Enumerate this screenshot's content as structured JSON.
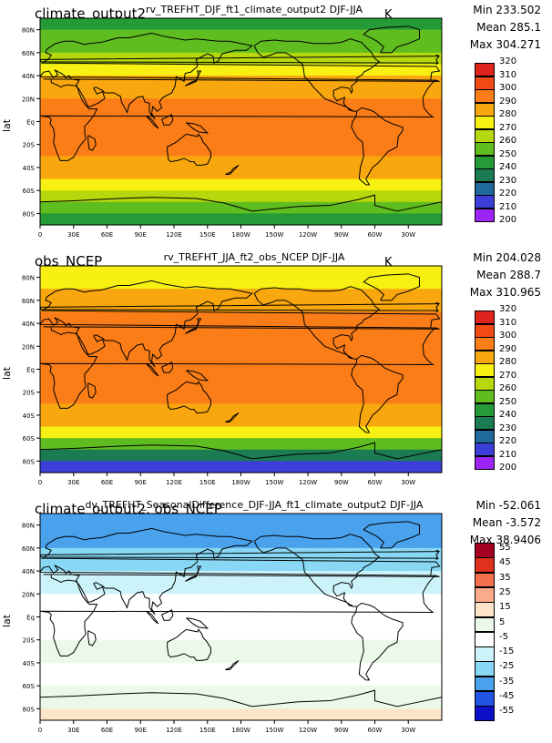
{
  "chart_data": [
    {
      "type": "heatmap",
      "left_title": "climate_output2",
      "center_title": "rv_TREFHT_DJF_ft1_climate_output2  DJF-JJA",
      "units": "K",
      "stats": [
        "Min 233.502",
        "Mean 285.1",
        "Max 304.271"
      ],
      "ylabel": "lat",
      "y_ticks": [
        "80N",
        "60N",
        "40N",
        "20N",
        "Eq",
        "20S",
        "40S",
        "60S",
        "80S"
      ],
      "x_ticks": [
        "0",
        "30E",
        "60E",
        "90E",
        "120E",
        "150E",
        "180W",
        "150W",
        "120W",
        "90W",
        "60W",
        "30W"
      ],
      "legend_levels": [
        "320",
        "310",
        "300",
        "290",
        "280",
        "270",
        "260",
        "250",
        "240",
        "230",
        "220",
        "210",
        "200"
      ],
      "legend_colors": [
        "#8b0000",
        "#e0231c",
        "#f24a14",
        "#fa7d18",
        "#f9a70e",
        "#f7f012",
        "#b7d80c",
        "#5fbd1f",
        "#249b36",
        "#1b7b52",
        "#1f6a9a",
        "#3b3fd7",
        "#9c24f7"
      ],
      "zonal_profile": [
        {
          "lat": 90,
          "value": 245
        },
        {
          "lat": 80,
          "value": 248
        },
        {
          "lat": 70,
          "value": 253
        },
        {
          "lat": 60,
          "value": 260
        },
        {
          "lat": 50,
          "value": 268
        },
        {
          "lat": 40,
          "value": 277
        },
        {
          "lat": 30,
          "value": 286
        },
        {
          "lat": 20,
          "value": 293
        },
        {
          "lat": 10,
          "value": 297
        },
        {
          "lat": 0,
          "value": 299
        },
        {
          "lat": -10,
          "value": 299
        },
        {
          "lat": -20,
          "value": 297
        },
        {
          "lat": -30,
          "value": 292
        },
        {
          "lat": -40,
          "value": 286
        },
        {
          "lat": -50,
          "value": 277
        },
        {
          "lat": -60,
          "value": 270
        },
        {
          "lat": -70,
          "value": 262
        },
        {
          "lat": -80,
          "value": 244
        },
        {
          "lat": -90,
          "value": 238
        }
      ]
    },
    {
      "type": "heatmap",
      "left_title": "obs_NCEP",
      "center_title": "rv_TREFHT_JJA_ft2_obs_NCEP  DJF-JJA",
      "units": "K",
      "stats": [
        "Min 204.028",
        "Mean 288.7",
        "Max 310.965"
      ],
      "ylabel": "lat",
      "y_ticks": [
        "80N",
        "60N",
        "40N",
        "20N",
        "Eq",
        "20S",
        "40S",
        "60S",
        "80S"
      ],
      "x_ticks": [
        "0",
        "30E",
        "60E",
        "90E",
        "120E",
        "150E",
        "180W",
        "150W",
        "120W",
        "90W",
        "60W",
        "30W"
      ],
      "legend_levels": [
        "320",
        "310",
        "300",
        "290",
        "280",
        "270",
        "260",
        "250",
        "240",
        "230",
        "220",
        "210",
        "200"
      ],
      "legend_colors": [
        "#8b0000",
        "#e0231c",
        "#f24a14",
        "#fa7d18",
        "#f9a70e",
        "#f7f012",
        "#b7d80c",
        "#5fbd1f",
        "#249b36",
        "#1b7b52",
        "#1f6a9a",
        "#3b3fd7",
        "#9c24f7"
      ],
      "zonal_profile": [
        {
          "lat": 90,
          "value": 273
        },
        {
          "lat": 80,
          "value": 276
        },
        {
          "lat": 70,
          "value": 280
        },
        {
          "lat": 60,
          "value": 286
        },
        {
          "lat": 50,
          "value": 290
        },
        {
          "lat": 40,
          "value": 294
        },
        {
          "lat": 30,
          "value": 297
        },
        {
          "lat": 20,
          "value": 299
        },
        {
          "lat": 10,
          "value": 299
        },
        {
          "lat": 0,
          "value": 298
        },
        {
          "lat": -10,
          "value": 296
        },
        {
          "lat": -20,
          "value": 293
        },
        {
          "lat": -30,
          "value": 289
        },
        {
          "lat": -40,
          "value": 283
        },
        {
          "lat": -50,
          "value": 277
        },
        {
          "lat": -60,
          "value": 268
        },
        {
          "lat": -70,
          "value": 250
        },
        {
          "lat": -80,
          "value": 225
        },
        {
          "lat": -90,
          "value": 212
        }
      ]
    },
    {
      "type": "heatmap",
      "left_title": "climate_output2, obs_NCEP",
      "center_title": "dv_TREFHT_SeasonalDifference_DJF-JJA_ft1_climate_output2  DJF-JJA",
      "units": "",
      "stats": [
        "Min -52.061",
        "Mean -3.572",
        "Max 38.9406"
      ],
      "ylabel": "lat",
      "y_ticks": [
        "80N",
        "60N",
        "40N",
        "20N",
        "Eq",
        "20S",
        "40S",
        "60S",
        "80S"
      ],
      "x_ticks": [
        "0",
        "30E",
        "60E",
        "90E",
        "120E",
        "150E",
        "180W",
        "150W",
        "120W",
        "90W",
        "60W",
        "30W"
      ],
      "legend_levels": [
        "55",
        "45",
        "35",
        "25",
        "15",
        "5",
        "-5",
        "-15",
        "-25",
        "-35",
        "-45",
        "-55"
      ],
      "legend_colors": [
        "#a50021",
        "#e0301e",
        "#f5704c",
        "#fcab8a",
        "#fde3c8",
        "#ebfae8",
        "#ffffff",
        "#cdf3fa",
        "#88d8f5",
        "#4aa1ec",
        "#2155e3",
        "#0c10c9"
      ],
      "zonal_profile": [
        {
          "lat": 90,
          "value": -28
        },
        {
          "lat": 80,
          "value": -28
        },
        {
          "lat": 70,
          "value": -27
        },
        {
          "lat": 60,
          "value": -26
        },
        {
          "lat": 50,
          "value": -22
        },
        {
          "lat": 40,
          "value": -17
        },
        {
          "lat": 30,
          "value": -11
        },
        {
          "lat": 20,
          "value": -6
        },
        {
          "lat": 10,
          "value": -2
        },
        {
          "lat": 0,
          "value": 0
        },
        {
          "lat": -10,
          "value": 2
        },
        {
          "lat": -20,
          "value": 4
        },
        {
          "lat": -30,
          "value": 6
        },
        {
          "lat": -40,
          "value": 4
        },
        {
          "lat": -50,
          "value": 2
        },
        {
          "lat": -60,
          "value": 5
        },
        {
          "lat": -70,
          "value": 12
        },
        {
          "lat": -80,
          "value": 16
        },
        {
          "lat": -90,
          "value": 17
        }
      ]
    }
  ]
}
